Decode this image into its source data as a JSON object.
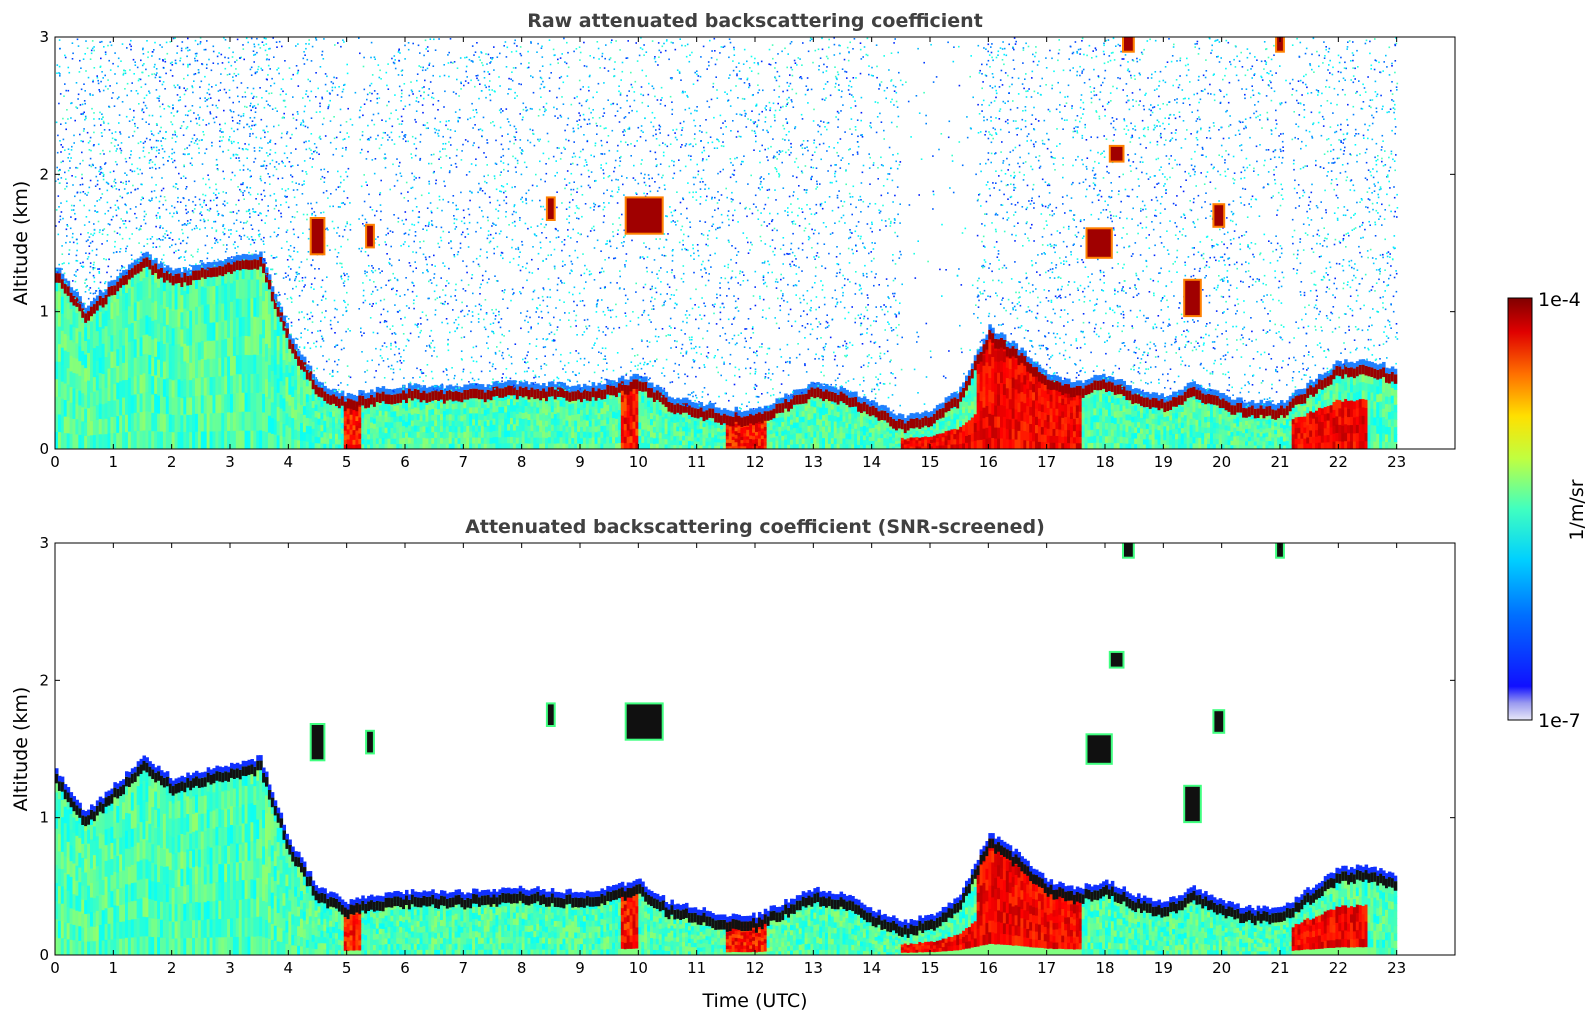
{
  "chart_data": [
    {
      "type": "heatmap",
      "title": "Raw attenuated backscattering coefficient",
      "xlabel": "",
      "ylabel": "Altitude (km)",
      "xlim": [
        0,
        24
      ],
      "ylim": [
        0,
        3
      ],
      "x_ticks": [
        "0",
        "1",
        "2",
        "3",
        "4",
        "5",
        "6",
        "7",
        "8",
        "9",
        "10",
        "11",
        "12",
        "13",
        "14",
        "15",
        "16",
        "17",
        "18",
        "19",
        "20",
        "21",
        "22",
        "23"
      ],
      "y_ticks": [
        "0",
        "1",
        "2",
        "3"
      ],
      "data_end_time": 23,
      "layer_top_km": [
        [
          0,
          1.3
        ],
        [
          0.5,
          1.0
        ],
        [
          1.0,
          1.2
        ],
        [
          1.5,
          1.4
        ],
        [
          2.0,
          1.25
        ],
        [
          2.5,
          1.3
        ],
        [
          3.0,
          1.35
        ],
        [
          3.5,
          1.4
        ],
        [
          4.0,
          0.8
        ],
        [
          4.5,
          0.45
        ],
        [
          5.0,
          0.35
        ],
        [
          5.5,
          0.4
        ],
        [
          6.0,
          0.42
        ],
        [
          7.0,
          0.42
        ],
        [
          8.0,
          0.45
        ],
        [
          9.0,
          0.42
        ],
        [
          10.0,
          0.5
        ],
        [
          10.5,
          0.35
        ],
        [
          11.0,
          0.3
        ],
        [
          11.5,
          0.25
        ],
        [
          12.0,
          0.25
        ],
        [
          12.5,
          0.35
        ],
        [
          13.0,
          0.45
        ],
        [
          13.5,
          0.4
        ],
        [
          14.0,
          0.3
        ],
        [
          14.5,
          0.2
        ],
        [
          15.0,
          0.25
        ],
        [
          15.5,
          0.4
        ],
        [
          16.0,
          0.85
        ],
        [
          16.5,
          0.7
        ],
        [
          17.0,
          0.5
        ],
        [
          17.5,
          0.45
        ],
        [
          18.0,
          0.5
        ],
        [
          18.5,
          0.4
        ],
        [
          19.0,
          0.35
        ],
        [
          19.5,
          0.45
        ],
        [
          20.0,
          0.35
        ],
        [
          20.5,
          0.3
        ],
        [
          21.0,
          0.3
        ],
        [
          21.5,
          0.45
        ],
        [
          22.0,
          0.6
        ],
        [
          22.5,
          0.6
        ],
        [
          23.0,
          0.55
        ]
      ],
      "elevated_clouds": [
        {
          "t": 10.1,
          "z": 1.7,
          "w": 0.6,
          "h": 0.25
        },
        {
          "t": 8.5,
          "z": 1.75,
          "w": 0.1,
          "h": 0.15
        },
        {
          "t": 17.9,
          "z": 1.5,
          "w": 0.4,
          "h": 0.2
        },
        {
          "t": 18.2,
          "z": 2.15,
          "w": 0.2,
          "h": 0.1
        },
        {
          "t": 19.95,
          "z": 1.7,
          "w": 0.15,
          "h": 0.15
        },
        {
          "t": 19.5,
          "z": 1.1,
          "w": 0.25,
          "h": 0.25
        },
        {
          "t": 18.4,
          "z": 2.95,
          "w": 0.15,
          "h": 0.1
        },
        {
          "t": 21.0,
          "z": 2.95,
          "w": 0.1,
          "h": 0.1
        },
        {
          "t": 5.4,
          "z": 1.55,
          "w": 0.1,
          "h": 0.15
        },
        {
          "t": 4.5,
          "z": 1.55,
          "w": 0.2,
          "h": 0.25
        }
      ]
    },
    {
      "type": "heatmap",
      "title": "Attenuated backscattering coefficient (SNR-screened)",
      "xlabel": "Time (UTC)",
      "ylabel": "Altitude (km)",
      "xlim": [
        0,
        24
      ],
      "ylim": [
        0,
        3
      ],
      "x_ticks": [
        "0",
        "1",
        "2",
        "3",
        "4",
        "5",
        "6",
        "7",
        "8",
        "9",
        "10",
        "11",
        "12",
        "13",
        "14",
        "15",
        "16",
        "17",
        "18",
        "19",
        "20",
        "21",
        "22",
        "23"
      ],
      "y_ticks": [
        "0",
        "1",
        "2",
        "3"
      ],
      "data_end_time": 23
    }
  ],
  "colorbar": {
    "label": "1/m/sr",
    "max_label": "1e-4",
    "min_label": "1e-7",
    "colormap": "jet",
    "scale": "log",
    "range": [
      1e-07,
      0.0001
    ]
  }
}
